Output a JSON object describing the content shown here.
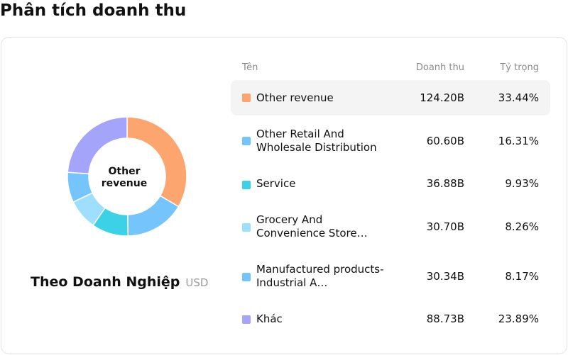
{
  "page": {
    "title": "Phân tích doanh thu"
  },
  "chart": {
    "center_label": "Other revenue",
    "caption": "Theo Doanh Nghiệp",
    "unit": "USD"
  },
  "table": {
    "headers": {
      "name": "Tên",
      "revenue": "Doanh thu",
      "share": "Tỷ trọng"
    },
    "rows": [
      {
        "name": "Other revenue",
        "revenue": "124.20B",
        "share": "33.44%",
        "color": "#fca56e"
      },
      {
        "name": "Other Retail And Wholesale Distribution",
        "revenue": "60.60B",
        "share": "16.31%",
        "color": "#75c4fb"
      },
      {
        "name": "Service",
        "revenue": "36.88B",
        "share": "9.93%",
        "color": "#3dd1e7"
      },
      {
        "name": "Grocery And Convenience Store…",
        "revenue": "30.70B",
        "share": "8.26%",
        "color": "#9edefe"
      },
      {
        "name": "Manufactured products-Industrial A…",
        "revenue": "30.34B",
        "share": "8.17%",
        "color": "#75c4fb"
      },
      {
        "name": "Khác",
        "revenue": "88.73B",
        "share": "23.89%",
        "color": "#a4a4fb"
      }
    ]
  },
  "chart_data": {
    "type": "pie",
    "categories": [
      "Other revenue",
      "Other Retail And Wholesale Distribution",
      "Service",
      "Grocery And Convenience Store…",
      "Manufactured products-Industrial A…",
      "Khác"
    ],
    "values": [
      33.44,
      16.31,
      9.93,
      8.26,
      8.17,
      23.89
    ],
    "colors": [
      "#fca56e",
      "#75c4fb",
      "#3dd1e7",
      "#9edefe",
      "#75c4fb",
      "#a4a4fb"
    ]
  }
}
